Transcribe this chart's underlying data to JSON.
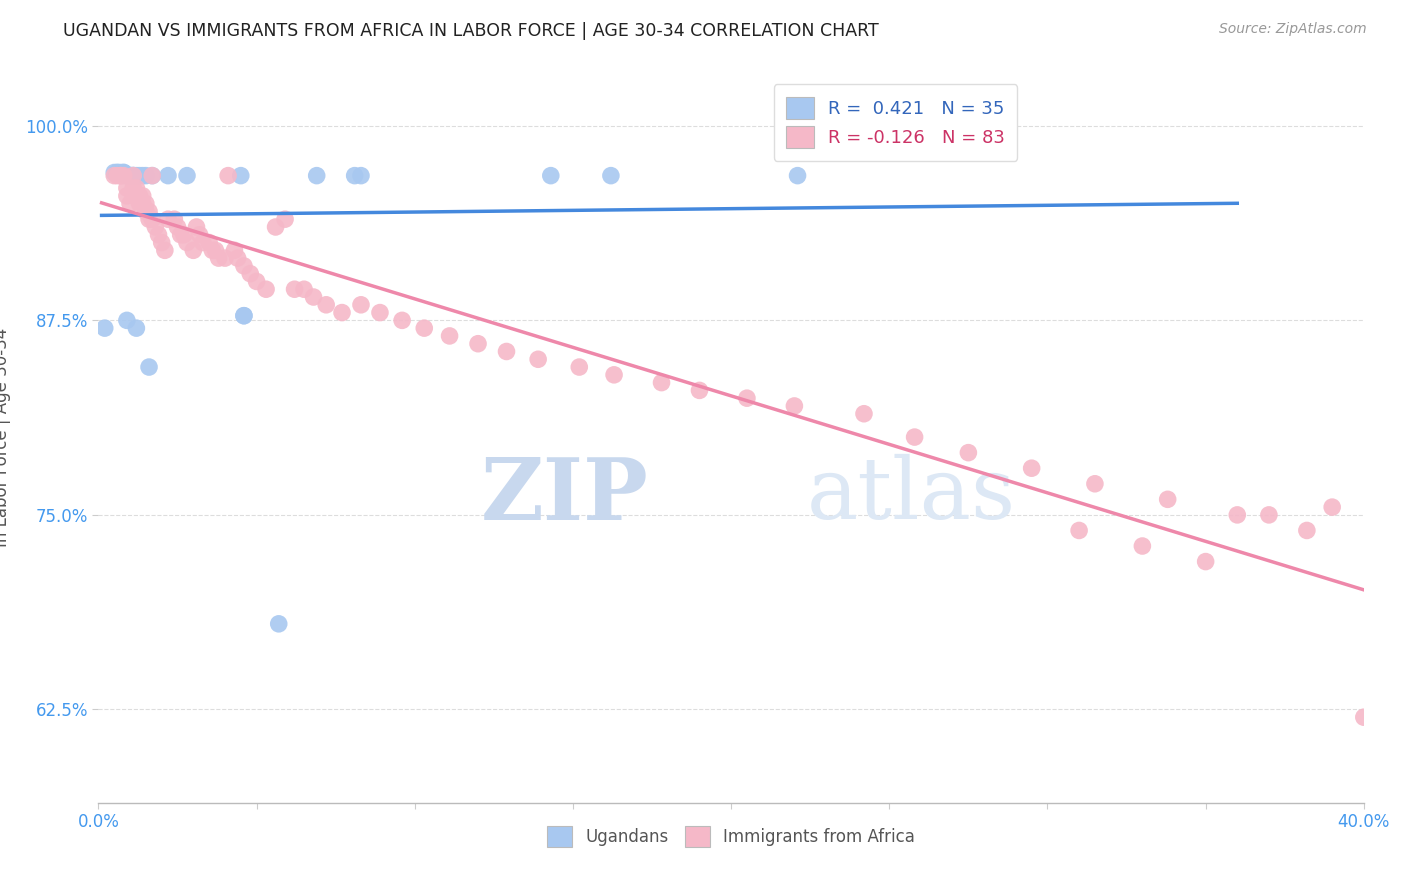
{
  "title": "UGANDAN VS IMMIGRANTS FROM AFRICA IN LABOR FORCE | AGE 30-34 CORRELATION CHART",
  "source": "Source: ZipAtlas.com",
  "ylabel": "In Labor Force | Age 30-34",
  "xlabel": "",
  "xlim": [
    0.0,
    0.4
  ],
  "ylim": [
    0.565,
    1.035
  ],
  "yticks": [
    0.625,
    0.75,
    0.875,
    1.0
  ],
  "ytick_labels": [
    "62.5%",
    "75.0%",
    "87.5%",
    "100.0%"
  ],
  "xticks": [
    0.0,
    0.05,
    0.1,
    0.15,
    0.2,
    0.25,
    0.3,
    0.35,
    0.4
  ],
  "xtick_labels": [
    "0.0%",
    "",
    "",
    "",
    "",
    "",
    "",
    "",
    "40.0%"
  ],
  "ugandan_color": "#a8c8f0",
  "african_color": "#f5b8c8",
  "ugandan_line_color": "#4488dd",
  "african_line_color": "#ee88aa",
  "legend_R_ugandan": "0.421",
  "legend_N_ugandan": "35",
  "legend_R_african": "-0.126",
  "legend_N_african": "83",
  "watermark_zip": "ZIP",
  "watermark_atlas": "atlas",
  "watermark_color": "#d0e4f8",
  "background_color": "#ffffff",
  "grid_color": "#dddddd",
  "title_color": "#222222",
  "axis_label_color": "#555555",
  "tick_label_color_y": "#4499ee",
  "tick_label_color_x": "#4499ee",
  "ugandan_x": [
    0.002,
    0.005,
    0.006,
    0.006,
    0.007,
    0.008,
    0.008,
    0.009,
    0.009,
    0.009,
    0.01,
    0.01,
    0.01,
    0.011,
    0.011,
    0.011,
    0.012,
    0.012,
    0.013,
    0.014,
    0.015,
    0.016,
    0.017,
    0.022,
    0.028,
    0.045,
    0.046,
    0.046,
    0.057,
    0.069,
    0.081,
    0.083,
    0.143,
    0.162,
    0.221
  ],
  "ugandan_y": [
    0.87,
    0.97,
    0.97,
    0.97,
    0.97,
    0.97,
    0.97,
    0.968,
    0.968,
    0.875,
    0.968,
    0.968,
    0.968,
    0.968,
    0.968,
    0.968,
    0.87,
    0.968,
    0.968,
    0.968,
    0.968,
    0.845,
    0.968,
    0.968,
    0.968,
    0.968,
    0.878,
    0.878,
    0.68,
    0.968,
    0.968,
    0.968,
    0.968,
    0.968,
    0.968
  ],
  "african_x": [
    0.005,
    0.006,
    0.007,
    0.007,
    0.008,
    0.009,
    0.009,
    0.01,
    0.011,
    0.011,
    0.011,
    0.012,
    0.013,
    0.013,
    0.014,
    0.014,
    0.015,
    0.015,
    0.016,
    0.016,
    0.017,
    0.017,
    0.018,
    0.019,
    0.02,
    0.021,
    0.022,
    0.024,
    0.025,
    0.026,
    0.027,
    0.028,
    0.03,
    0.031,
    0.032,
    0.033,
    0.035,
    0.036,
    0.037,
    0.038,
    0.04,
    0.041,
    0.043,
    0.044,
    0.046,
    0.048,
    0.05,
    0.053,
    0.056,
    0.059,
    0.062,
    0.065,
    0.068,
    0.072,
    0.077,
    0.083,
    0.089,
    0.096,
    0.103,
    0.111,
    0.12,
    0.129,
    0.139,
    0.152,
    0.163,
    0.178,
    0.19,
    0.205,
    0.22,
    0.242,
    0.258,
    0.275,
    0.295,
    0.315,
    0.338,
    0.36,
    0.382,
    0.31,
    0.33,
    0.35,
    0.37,
    0.39,
    0.4
  ],
  "african_y": [
    0.968,
    0.968,
    0.968,
    0.968,
    0.968,
    0.96,
    0.955,
    0.95,
    0.968,
    0.96,
    0.955,
    0.96,
    0.955,
    0.95,
    0.955,
    0.95,
    0.95,
    0.945,
    0.945,
    0.94,
    0.94,
    0.968,
    0.935,
    0.93,
    0.925,
    0.92,
    0.94,
    0.94,
    0.935,
    0.93,
    0.93,
    0.925,
    0.92,
    0.935,
    0.93,
    0.925,
    0.925,
    0.92,
    0.92,
    0.915,
    0.915,
    0.968,
    0.92,
    0.915,
    0.91,
    0.905,
    0.9,
    0.895,
    0.935,
    0.94,
    0.895,
    0.895,
    0.89,
    0.885,
    0.88,
    0.885,
    0.88,
    0.875,
    0.87,
    0.865,
    0.86,
    0.855,
    0.85,
    0.845,
    0.84,
    0.835,
    0.83,
    0.825,
    0.82,
    0.815,
    0.8,
    0.79,
    0.78,
    0.77,
    0.76,
    0.75,
    0.74,
    0.74,
    0.73,
    0.72,
    0.75,
    0.755,
    0.62
  ]
}
